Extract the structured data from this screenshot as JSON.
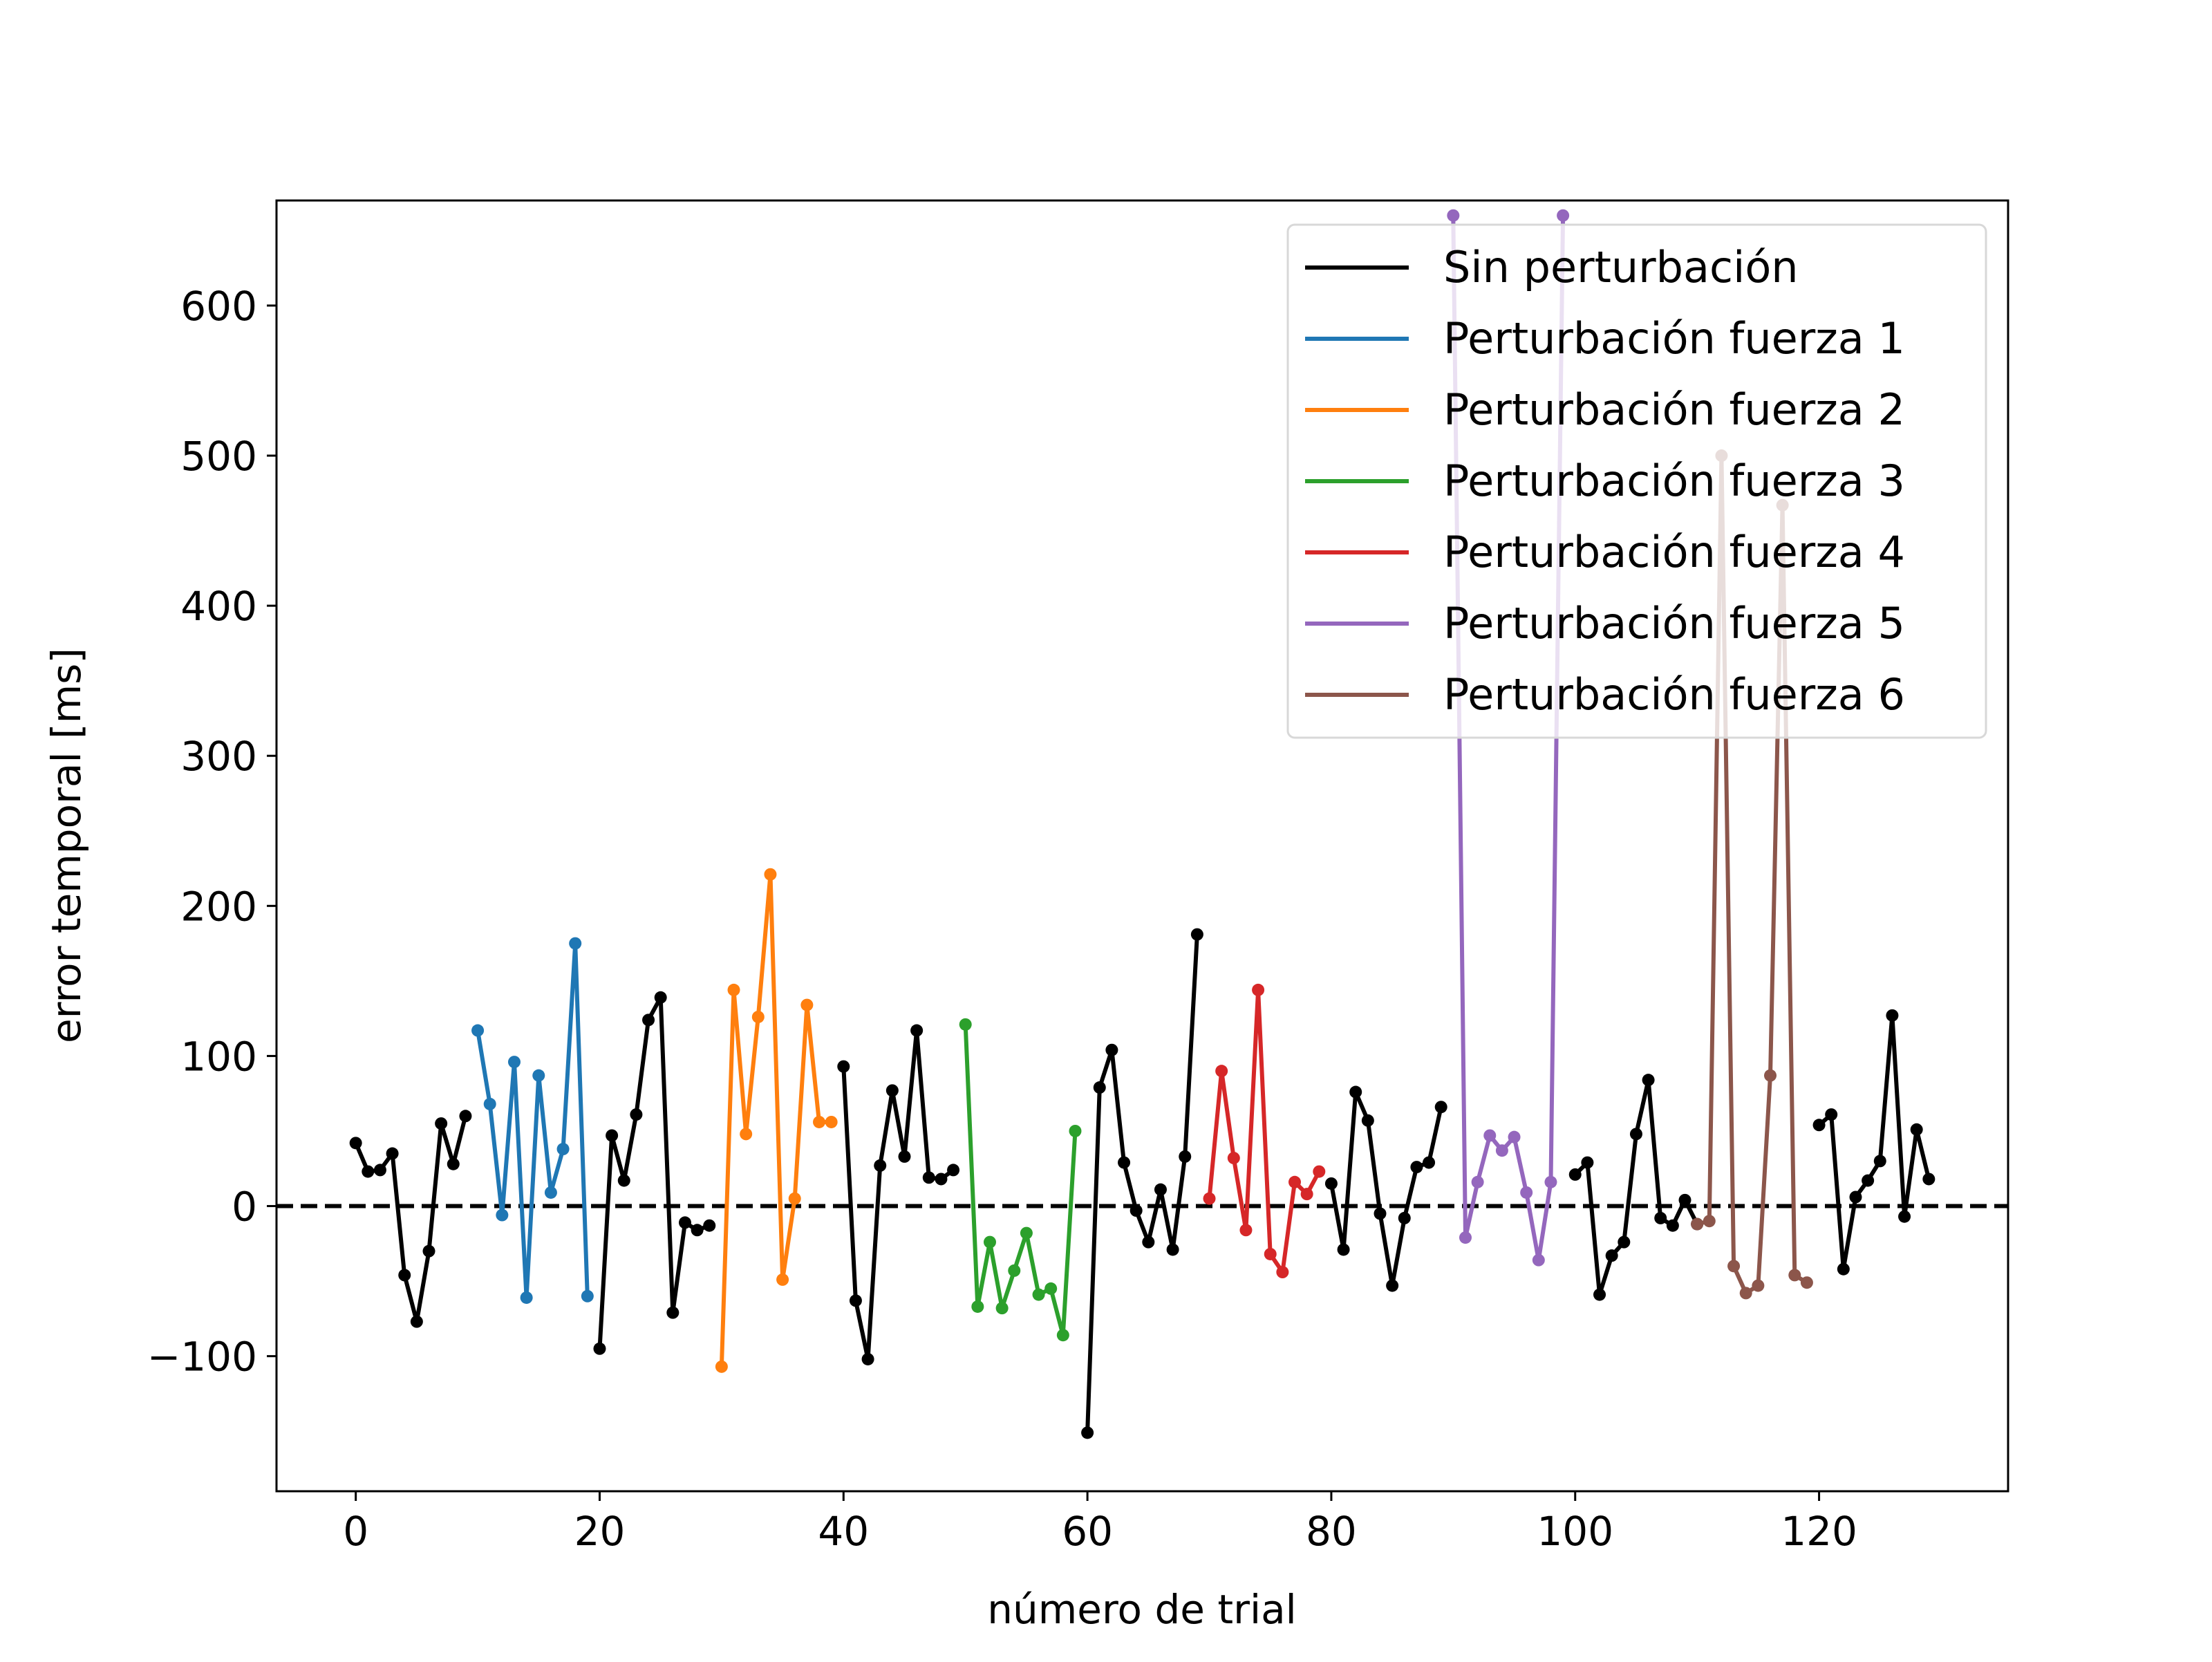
{
  "chart_data": {
    "type": "line",
    "title": "",
    "xlabel": "número de trial",
    "ylabel": "error temporal [ms]",
    "xlim": [
      -6.5,
      135.5
    ],
    "ylim": [
      -190,
      670
    ],
    "xticks": [
      0,
      20,
      40,
      60,
      80,
      100,
      120
    ],
    "yticks": [
      -100,
      0,
      100,
      200,
      300,
      400,
      500,
      600
    ],
    "ytick_labels": [
      "−100",
      "0",
      "100",
      "200",
      "300",
      "400",
      "500",
      "600"
    ],
    "grid": false,
    "legend_position": "top-right",
    "reference_line": {
      "y": 0,
      "style": "dashed",
      "color": "#000000"
    },
    "series": [
      {
        "name": "Sin perturbación",
        "color": "#000000",
        "segments": [
          {
            "x": [
              0,
              1,
              2,
              3,
              4,
              5,
              6,
              7,
              8,
              9
            ],
            "y": [
              42,
              23,
              24,
              35,
              -46,
              -77,
              -30,
              55,
              28,
              60
            ]
          },
          {
            "x": [
              20,
              21,
              22,
              23,
              24,
              25,
              26,
              27,
              28,
              29
            ],
            "y": [
              -95,
              47,
              17,
              61,
              124,
              139,
              -71,
              -11,
              -16,
              -13
            ]
          },
          {
            "x": [
              40,
              41,
              42,
              43,
              44,
              45,
              46,
              47,
              48,
              49
            ],
            "y": [
              93,
              -63,
              -102,
              27,
              77,
              33,
              117,
              19,
              18,
              24
            ]
          },
          {
            "x": [
              60,
              61,
              62,
              63,
              64,
              65,
              66,
              67,
              68,
              69
            ],
            "y": [
              -151,
              79,
              104,
              29,
              -3,
              -24,
              11,
              -29,
              33,
              181
            ]
          },
          {
            "x": [
              80,
              81,
              82,
              83,
              84,
              85,
              86,
              87,
              88,
              89
            ],
            "y": [
              15,
              -29,
              76,
              57,
              -5,
              -53,
              -8,
              26,
              29,
              66
            ]
          },
          {
            "x": [
              100,
              101,
              102,
              103,
              104,
              105,
              106,
              107,
              108,
              109,
              110
            ],
            "y": [
              21,
              29,
              -59,
              -33,
              -24,
              48,
              84,
              -8,
              -13,
              4,
              -12
            ]
          },
          {
            "x": [
              120,
              121,
              122,
              123,
              124,
              125,
              126,
              127,
              128,
              129
            ],
            "y": [
              54,
              61,
              -42,
              6,
              17,
              30,
              127,
              -7,
              51,
              18
            ]
          }
        ]
      },
      {
        "name": "Perturbación fuerza 1",
        "color": "#1f77b4",
        "segments": [
          {
            "x": [
              10,
              11,
              12,
              13,
              14,
              15,
              16,
              17,
              18,
              19
            ],
            "y": [
              117,
              68,
              -6,
              96,
              -61,
              87,
              9,
              38,
              175,
              -60
            ]
          }
        ]
      },
      {
        "name": "Perturbación fuerza 2",
        "color": "#ff7f0e",
        "segments": [
          {
            "x": [
              30,
              31,
              32,
              33,
              34,
              35,
              36,
              37,
              38,
              39
            ],
            "y": [
              -107,
              144,
              48,
              126,
              221,
              -49,
              5,
              134,
              56,
              56
            ]
          }
        ]
      },
      {
        "name": "Perturbación fuerza 3",
        "color": "#2ca02c",
        "segments": [
          {
            "x": [
              50,
              51,
              52,
              53,
              54,
              55,
              56,
              57,
              58,
              59
            ],
            "y": [
              121,
              -67,
              -24,
              -68,
              -43,
              -18,
              -59,
              -55,
              -86,
              50
            ]
          }
        ]
      },
      {
        "name": "Perturbación fuerza 4",
        "color": "#d62728",
        "segments": [
          {
            "x": [
              70,
              71,
              72,
              73,
              74,
              75,
              76,
              77,
              78,
              79
            ],
            "y": [
              5,
              90,
              32,
              -16,
              144,
              -32,
              -44,
              16,
              8,
              23
            ]
          }
        ]
      },
      {
        "name": "Perturbación fuerza 5",
        "color": "#9467bd",
        "segments": [
          {
            "x": [
              90,
              91,
              92,
              93,
              94,
              95,
              96,
              97,
              98,
              99
            ],
            "y": [
              660,
              -21,
              16,
              47,
              37,
              46,
              9,
              -36,
              16,
              660
            ]
          }
        ]
      },
      {
        "name": "Perturbación fuerza 6",
        "color": "#8c564b",
        "segments": [
          {
            "x": [
              110,
              111,
              112,
              113,
              114,
              115,
              116,
              117,
              118,
              119
            ],
            "y": [
              -12,
              -10,
              500,
              -40,
              -58,
              -53,
              87,
              467,
              -46,
              -51
            ]
          }
        ]
      }
    ]
  }
}
